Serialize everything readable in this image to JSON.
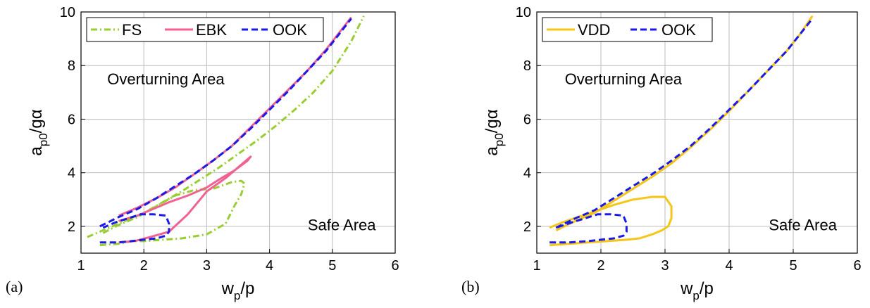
{
  "chart_data": [
    {
      "type": "line",
      "panel_label": "(a)",
      "xlabel": {
        "main": "w",
        "sub": "p",
        "rest": "/p"
      },
      "ylabel": {
        "main": "a",
        "sub": "p0",
        "rest": "/gα"
      },
      "xlim": [
        1,
        6
      ],
      "ylim": [
        1,
        10
      ],
      "xticks": [
        1,
        2,
        3,
        4,
        5,
        6
      ],
      "yticks": [
        2,
        4,
        6,
        8,
        10
      ],
      "grid": true,
      "legend_position": "top-left",
      "annotations": [
        {
          "text": "Overturning Area",
          "x": 2.35,
          "y": 7.3
        },
        {
          "text": "Safe Area",
          "x": 5.15,
          "y": 1.85
        }
      ],
      "series": [
        {
          "name": "FS",
          "color": "#9acd32",
          "style": "dashdot",
          "x": [
            1.1,
            1.4,
            1.7,
            2.0,
            2.3,
            2.6,
            2.9,
            3.2,
            3.5,
            3.8,
            4.1,
            4.4,
            4.7,
            5.0,
            5.3,
            5.5
          ],
          "y": [
            1.6,
            1.9,
            2.2,
            2.5,
            2.9,
            3.3,
            3.75,
            4.2,
            4.7,
            5.2,
            5.75,
            6.35,
            7.0,
            7.8,
            8.9,
            9.85
          ]
        },
        {
          "name": "FS",
          "color": "#9acd32",
          "style": "dashdot",
          "x": [
            1.3,
            1.6,
            1.8,
            2.0,
            2.3,
            2.6,
            3.0,
            3.3,
            3.45,
            3.55,
            3.6,
            3.55,
            3.4,
            3.1,
            2.8,
            2.5,
            2.2,
            1.9,
            1.6,
            1.35
          ],
          "y": [
            1.3,
            1.35,
            1.45,
            1.45,
            1.5,
            1.55,
            1.7,
            2.1,
            2.8,
            3.2,
            3.6,
            3.7,
            3.65,
            3.4,
            3.35,
            3.15,
            2.75,
            2.35,
            2.05,
            1.75
          ]
        },
        {
          "name": "EBK",
          "color": "#f06292",
          "style": "solid",
          "x": [
            1.6,
            1.9,
            2.2,
            2.5,
            2.8,
            3.1,
            3.4,
            3.7,
            4.0,
            4.3,
            4.6,
            4.9,
            5.1,
            5.3
          ],
          "y": [
            2.4,
            2.7,
            3.05,
            3.45,
            3.95,
            4.45,
            5.0,
            5.7,
            6.4,
            7.1,
            7.8,
            8.6,
            9.2,
            9.8
          ]
        },
        {
          "name": "EBK",
          "color": "#f06292",
          "style": "solid",
          "x": [
            1.6,
            1.9,
            2.1,
            2.4,
            2.7,
            3.0,
            3.2,
            3.45,
            3.65,
            3.7,
            3.55,
            3.3,
            3.0,
            2.7,
            2.4,
            2.1,
            1.85,
            1.6
          ],
          "y": [
            2.2,
            2.4,
            2.6,
            2.9,
            3.15,
            3.45,
            3.75,
            4.1,
            4.45,
            4.6,
            4.3,
            3.8,
            3.3,
            2.45,
            1.8,
            1.6,
            1.45,
            1.4
          ]
        },
        {
          "name": "OOK",
          "color": "#1a1ae6",
          "style": "dashed",
          "x": [
            1.3,
            1.6,
            1.9,
            2.2,
            2.5,
            2.8,
            3.1,
            3.4,
            3.7,
            4.0,
            4.3,
            4.6,
            4.9,
            5.1,
            5.3
          ],
          "y": [
            2.0,
            2.35,
            2.65,
            3.05,
            3.5,
            3.95,
            4.45,
            5.0,
            5.65,
            6.35,
            7.05,
            7.8,
            8.55,
            9.15,
            9.75
          ]
        },
        {
          "name": "OOK",
          "color": "#1a1ae6",
          "style": "dashed",
          "x": [
            1.3,
            1.6,
            1.8,
            2.0,
            2.2,
            2.35,
            2.4,
            2.4,
            2.35,
            2.15,
            1.95,
            1.75,
            1.55,
            1.35
          ],
          "y": [
            1.4,
            1.4,
            1.45,
            1.5,
            1.55,
            1.65,
            1.8,
            2.1,
            2.4,
            2.45,
            2.45,
            2.3,
            2.15,
            1.95
          ]
        }
      ],
      "legend": [
        {
          "label": "FS",
          "color": "#9acd32",
          "style": "dashdot"
        },
        {
          "label": "EBK",
          "color": "#f06292",
          "style": "solid"
        },
        {
          "label": "OOK",
          "color": "#1a1ae6",
          "style": "dashed"
        }
      ]
    },
    {
      "type": "line",
      "panel_label": "(b)",
      "xlabel": {
        "main": "w",
        "sub": "p",
        "rest": "/p"
      },
      "ylabel": {
        "main": "a",
        "sub": "p0",
        "rest": "/gα"
      },
      "xlim": [
        1,
        6
      ],
      "ylim": [
        1,
        10
      ],
      "xticks": [
        1,
        2,
        3,
        4,
        5,
        6
      ],
      "yticks": [
        2,
        4,
        6,
        8,
        10
      ],
      "grid": true,
      "legend_position": "top-left",
      "annotations": [
        {
          "text": "Overturning Area",
          "x": 2.35,
          "y": 7.3
        },
        {
          "text": "Safe Area",
          "x": 5.15,
          "y": 1.85
        }
      ],
      "series": [
        {
          "name": "VDD",
          "color": "#f5c518",
          "style": "solid",
          "x": [
            1.3,
            1.6,
            1.9,
            2.2,
            2.5,
            2.8,
            3.1,
            3.4,
            3.7,
            4.0,
            4.3,
            4.6,
            4.9,
            5.1,
            5.3
          ],
          "y": [
            1.85,
            2.2,
            2.5,
            2.95,
            3.4,
            3.85,
            4.35,
            4.95,
            5.6,
            6.3,
            7.05,
            7.8,
            8.55,
            9.15,
            9.85
          ]
        },
        {
          "name": "VDD",
          "color": "#f5c518",
          "style": "solid",
          "x": [
            1.2,
            1.5,
            1.8,
            2.1,
            2.4,
            2.6,
            2.8,
            2.95,
            3.05,
            3.1,
            3.1,
            3.0,
            2.8,
            2.5,
            2.2,
            1.9,
            1.65,
            1.4,
            1.2
          ],
          "y": [
            1.3,
            1.35,
            1.4,
            1.45,
            1.5,
            1.55,
            1.7,
            1.85,
            2.0,
            2.3,
            2.75,
            3.1,
            3.1,
            3.0,
            2.8,
            2.55,
            2.35,
            2.15,
            1.95
          ]
        },
        {
          "name": "OOK",
          "color": "#1a1ae6",
          "style": "dashed",
          "x": [
            1.3,
            1.6,
            1.9,
            2.2,
            2.5,
            2.8,
            3.1,
            3.4,
            3.7,
            4.0,
            4.3,
            4.6,
            4.9,
            5.1,
            5.3
          ],
          "y": [
            1.95,
            2.3,
            2.6,
            3.05,
            3.5,
            3.95,
            4.45,
            5.0,
            5.65,
            6.35,
            7.05,
            7.8,
            8.55,
            9.15,
            9.75
          ]
        },
        {
          "name": "OOK",
          "color": "#1a1ae6",
          "style": "dashed",
          "x": [
            1.2,
            1.5,
            1.8,
            2.0,
            2.2,
            2.35,
            2.4,
            2.4,
            2.35,
            2.15,
            1.95,
            1.75,
            1.55,
            1.3
          ],
          "y": [
            1.4,
            1.4,
            1.45,
            1.5,
            1.55,
            1.65,
            1.8,
            2.1,
            2.4,
            2.45,
            2.45,
            2.3,
            2.15,
            1.95
          ]
        }
      ],
      "legend": [
        {
          "label": "VDD",
          "color": "#f5c518",
          "style": "solid"
        },
        {
          "label": "OOK",
          "color": "#1a1ae6",
          "style": "dashed"
        }
      ]
    }
  ]
}
